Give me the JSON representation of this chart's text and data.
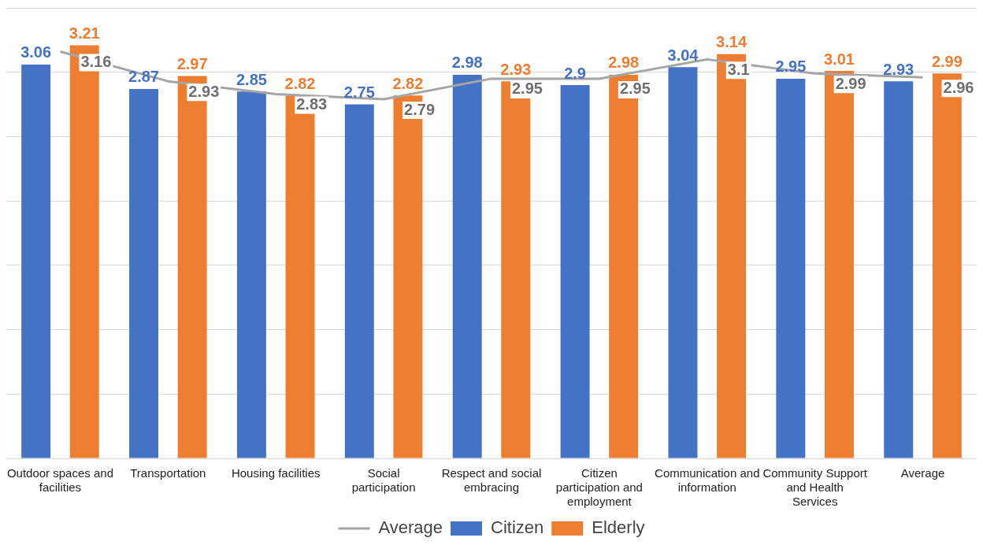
{
  "chart_data": {
    "type": "bar",
    "categories": [
      "Outdoor spaces and facilities",
      "Transportation",
      "Housing facilities",
      "Social participation",
      "Respect and social embracing",
      "Citizen participation and employment",
      "Communication and information",
      "Community Support and Health Services",
      "Average"
    ],
    "series": [
      {
        "name": "Citizen",
        "color": "#4472c4",
        "values": [
          3.06,
          2.87,
          2.85,
          2.75,
          2.98,
          2.9,
          3.04,
          2.95,
          2.93
        ]
      },
      {
        "name": "Elderly",
        "color": "#ed7d31",
        "values": [
          3.21,
          2.97,
          2.82,
          2.82,
          2.93,
          2.98,
          3.14,
          3.01,
          2.99
        ]
      },
      {
        "name": "Average",
        "type": "line",
        "color": "#a5a5a5",
        "values": [
          3.16,
          2.93,
          2.83,
          2.79,
          2.95,
          2.95,
          3.1,
          2.99,
          2.96
        ]
      }
    ],
    "tick_labels": "x",
    "grid": "y",
    "legend": "bottom",
    "data_labels": true,
    "marker": "none"
  }
}
